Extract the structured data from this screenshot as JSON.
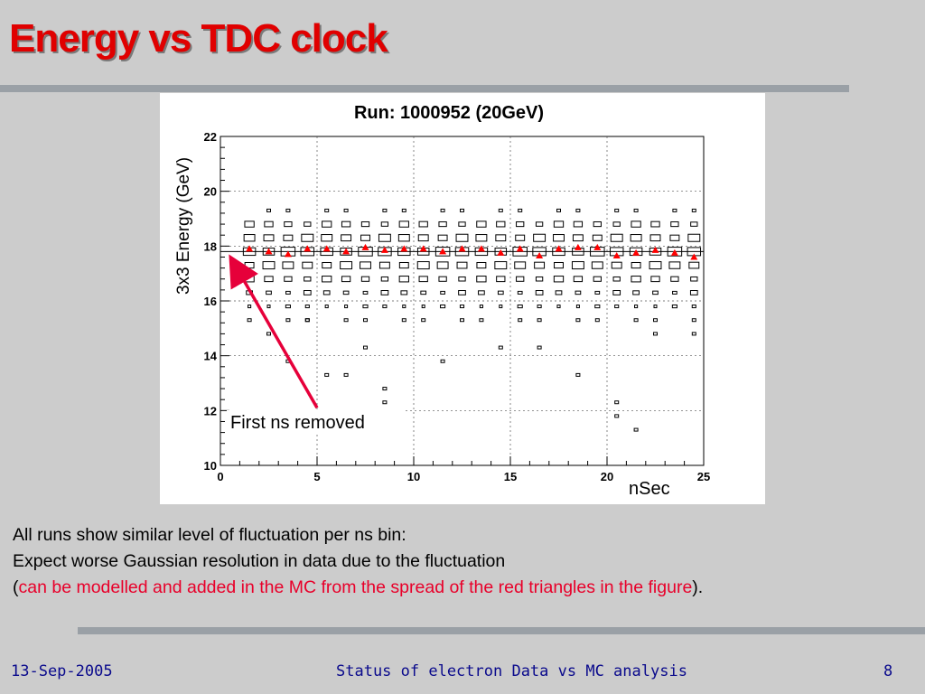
{
  "slide": {
    "title": "Energy vs TDC clock",
    "body_lines": [
      "All runs show similar level of fluctuation per ns bin:",
      "Expect worse Gaussian resolution in data due to the fluctuation"
    ],
    "note_open": "(",
    "note_red": "can be modelled and added in the MC from the spread of the red triangles in the figure",
    "note_close": ").",
    "colors": {
      "title": "#e00000",
      "note": "#e8002a",
      "footer": "#0a0a8c",
      "background": "#cccccc"
    }
  },
  "footer": {
    "date": "13-Sep-2005",
    "center": "Status of electron Data vs MC analysis",
    "page": "8"
  },
  "chart_data": {
    "type": "scatter",
    "subtype": "2D box histogram with profile markers",
    "title": "Run: 1000952 (20GeV)",
    "xlabel": "nSec",
    "ylabel": "3x3 Energy (GeV)",
    "xlim": [
      0,
      25
    ],
    "ylim": [
      10,
      22
    ],
    "x_ticks": [
      "0",
      "5",
      "10",
      "15",
      "20",
      "25"
    ],
    "y_ticks": [
      "10",
      "12",
      "14",
      "16",
      "18",
      "20",
      "22"
    ],
    "annotation": {
      "text": "First ns removed",
      "arrow_from": [
        5,
        12.1
      ],
      "arrow_to": [
        0.6,
        17.5
      ],
      "color": "#e6003a"
    },
    "box_rows_y": [
      19.3,
      18.8,
      18.3,
      17.8,
      17.3,
      16.8,
      16.3,
      15.8,
      15.3
    ],
    "box_columns_x": [
      1.5,
      2.5,
      3.5,
      4.5,
      5.5,
      6.5,
      7.5,
      8.5,
      9.5,
      10.5,
      11.5,
      12.5,
      13.5,
      14.5,
      15.5,
      16.5,
      17.5,
      18.5,
      19.5,
      20.5,
      21.5,
      22.5,
      23.5,
      24.5
    ],
    "box_outliers": [
      [
        2.5,
        14.8
      ],
      [
        3.5,
        13.8
      ],
      [
        4.5,
        15.3
      ],
      [
        5.5,
        13.3
      ],
      [
        6.5,
        13.3
      ],
      [
        7.5,
        14.3
      ],
      [
        8.5,
        12.8
      ],
      [
        8.5,
        12.3
      ],
      [
        11.5,
        13.8
      ],
      [
        14.5,
        14.3
      ],
      [
        16.5,
        14.3
      ],
      [
        18.5,
        13.3
      ],
      [
        20.5,
        12.3
      ],
      [
        20.5,
        11.8
      ],
      [
        21.5,
        11.3
      ],
      [
        22.5,
        14.8
      ],
      [
        24.5,
        14.8
      ]
    ],
    "series": [
      {
        "marker": "triangle",
        "color": "#ff0000",
        "x": [
          1.5,
          2.5,
          3.5,
          4.5,
          5.5,
          6.5,
          7.5,
          8.5,
          9.5,
          10.5,
          11.5,
          12.5,
          13.5,
          14.5,
          15.5,
          16.5,
          17.5,
          18.5,
          19.5,
          20.5,
          21.5,
          22.5,
          23.5,
          24.5
        ],
        "y": [
          17.9,
          17.8,
          17.7,
          17.9,
          17.9,
          17.8,
          17.95,
          17.85,
          17.9,
          17.9,
          17.8,
          17.9,
          17.9,
          17.75,
          17.9,
          17.65,
          17.9,
          17.95,
          17.95,
          17.65,
          17.75,
          17.85,
          17.75,
          17.6
        ]
      }
    ],
    "fit_line_y": 17.8
  }
}
